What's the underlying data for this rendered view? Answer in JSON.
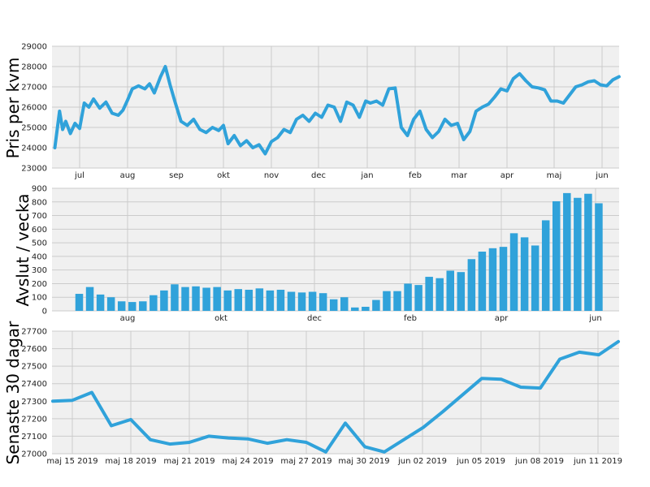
{
  "colors": {
    "series": "#30a2da",
    "panel_bg": "#f0f0f0",
    "grid": "#cbcbcb"
  },
  "chart_data": [
    {
      "type": "line",
      "ylabel": "Pris per kvm",
      "ylim": [
        23000,
        29000
      ],
      "yticks": [
        23000,
        24000,
        25000,
        26000,
        27000,
        28000,
        29000
      ],
      "xticks": [
        "jul",
        "aug",
        "sep",
        "okt",
        "nov",
        "dec",
        "jan",
        "feb",
        "mar",
        "apr",
        "maj",
        "jun"
      ],
      "grid": true,
      "x": [
        "2018-06-15",
        "2018-06-18",
        "2018-06-20",
        "2018-06-22",
        "2018-06-25",
        "2018-06-28",
        "2018-07-01",
        "2018-07-04",
        "2018-07-07",
        "2018-07-10",
        "2018-07-14",
        "2018-07-18",
        "2018-07-22",
        "2018-07-26",
        "2018-07-29",
        "2018-08-01",
        "2018-08-04",
        "2018-08-08",
        "2018-08-12",
        "2018-08-15",
        "2018-08-18",
        "2018-08-22",
        "2018-08-25",
        "2018-08-28",
        "2018-08-31",
        "2018-09-04",
        "2018-09-08",
        "2018-09-12",
        "2018-09-16",
        "2018-09-20",
        "2018-09-24",
        "2018-09-28",
        "2018-10-01",
        "2018-10-04",
        "2018-10-08",
        "2018-10-12",
        "2018-10-16",
        "2018-10-20",
        "2018-10-24",
        "2018-10-28",
        "2018-11-01",
        "2018-11-05",
        "2018-11-09",
        "2018-11-13",
        "2018-11-17",
        "2018-11-21",
        "2018-11-25",
        "2018-11-29",
        "2018-12-03",
        "2018-12-07",
        "2018-12-11",
        "2018-12-15",
        "2018-12-19",
        "2018-12-23",
        "2018-12-27",
        "2018-12-31",
        "2019-01-03",
        "2019-01-07",
        "2019-01-11",
        "2019-01-15",
        "2019-01-19",
        "2019-01-23",
        "2019-01-27",
        "2019-01-31",
        "2019-02-04",
        "2019-02-08",
        "2019-02-12",
        "2019-02-16",
        "2019-02-20",
        "2019-02-24",
        "2019-02-28",
        "2019-03-04",
        "2019-03-08",
        "2019-03-12",
        "2019-03-16",
        "2019-03-20",
        "2019-03-24",
        "2019-03-28",
        "2019-04-01",
        "2019-04-05",
        "2019-04-09",
        "2019-04-13",
        "2019-04-17",
        "2019-04-21",
        "2019-04-25",
        "2019-04-29",
        "2019-05-03",
        "2019-05-07",
        "2019-05-11",
        "2019-05-15",
        "2019-05-19",
        "2019-05-23",
        "2019-05-27",
        "2019-05-31",
        "2019-06-04",
        "2019-06-08",
        "2019-06-12"
      ],
      "series": [
        {
          "values": [
            24000,
            25800,
            24900,
            25300,
            24700,
            25200,
            24950,
            26200,
            26000,
            26400,
            25950,
            26250,
            25700,
            25600,
            25850,
            26350,
            26900,
            27050,
            26900,
            27150,
            26700,
            27500,
            28000,
            27100,
            26300,
            25300,
            25100,
            25400,
            24900,
            24750,
            25000,
            24850,
            25100,
            24200,
            24600,
            24100,
            24350,
            24000,
            24150,
            23700,
            24300,
            24500,
            24900,
            24750,
            25400,
            25600,
            25300,
            25700,
            25500,
            26100,
            26000,
            25300,
            26250,
            26100,
            25500,
            26300,
            26200,
            26300,
            26100,
            26900,
            26950,
            25000,
            24600,
            25400,
            25800,
            24900,
            24500,
            24800,
            25400,
            25100,
            25200,
            24400,
            24800,
            25800,
            26000,
            26150,
            26500,
            26900,
            26800,
            27400,
            27650,
            27300,
            27000,
            26950,
            26850,
            26300,
            26300,
            26200,
            26600,
            27000,
            27100,
            27250,
            27300,
            27100,
            27050,
            27350,
            27500
          ]
        }
      ]
    },
    {
      "type": "bar",
      "ylabel": "Avslut / vecka",
      "ylim": [
        0,
        900
      ],
      "yticks": [
        0,
        100,
        200,
        300,
        400,
        500,
        600,
        700,
        800,
        900
      ],
      "xticks": [
        "aug",
        "okt",
        "dec",
        "feb",
        "apr",
        "jun"
      ],
      "grid": true,
      "values": [
        125,
        175,
        120,
        100,
        70,
        65,
        70,
        115,
        150,
        195,
        175,
        180,
        170,
        175,
        150,
        160,
        155,
        165,
        150,
        155,
        140,
        135,
        140,
        130,
        85,
        100,
        25,
        30,
        80,
        145,
        145,
        200,
        190,
        250,
        240,
        295,
        285,
        380,
        435,
        460,
        470,
        570,
        540,
        480,
        665,
        805,
        865,
        830,
        860,
        790
      ]
    },
    {
      "type": "line",
      "ylabel": "Senaste 30 dagar",
      "ylim": [
        27000,
        27700
      ],
      "yticks": [
        27000,
        27100,
        27200,
        27300,
        27400,
        27500,
        27600,
        27700
      ],
      "xticks": [
        "maj 15 2019",
        "maj 18 2019",
        "maj 21 2019",
        "maj 24 2019",
        "maj 27 2019",
        "maj 30 2019",
        "jun 02 2019",
        "jun 05 2019",
        "jun 08 2019",
        "jun 11 2019"
      ],
      "grid": true,
      "x": [
        "2019-05-14",
        "2019-05-15",
        "2019-05-16",
        "2019-05-17",
        "2019-05-18",
        "2019-05-19",
        "2019-05-20",
        "2019-05-21",
        "2019-05-22",
        "2019-05-23",
        "2019-05-24",
        "2019-05-25",
        "2019-05-26",
        "2019-05-27",
        "2019-05-28",
        "2019-05-29",
        "2019-05-30",
        "2019-05-31",
        "2019-06-01",
        "2019-06-02",
        "2019-06-03",
        "2019-06-04",
        "2019-06-05",
        "2019-06-06",
        "2019-06-07",
        "2019-06-08",
        "2019-06-09",
        "2019-06-10",
        "2019-06-11",
        "2019-06-12"
      ],
      "series": [
        {
          "values": [
            27300,
            27305,
            27350,
            27160,
            27195,
            27080,
            27055,
            27065,
            27100,
            27090,
            27085,
            27060,
            27080,
            27065,
            27010,
            27175,
            27040,
            27010,
            27080,
            27150,
            27240,
            27335,
            27430,
            27425,
            27380,
            27375,
            27540,
            27580,
            27565,
            27640
          ]
        }
      ]
    }
  ]
}
